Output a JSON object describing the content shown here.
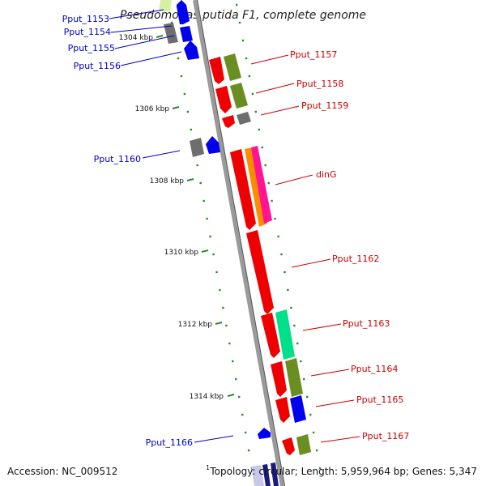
{
  "title": "Pseudomonas putida F1, complete genome",
  "accession": "Accession: NC_009512",
  "topology": "Topology: circular; Length: 5,959,964 bp; Genes: 5,347",
  "superscript": "1",
  "colors": {
    "backbone": "#8c8c8c",
    "tick_dots": "#2e8b2e",
    "left_label": "#0000cc",
    "right_label": "#cc0000",
    "red_gene": "#ee0000",
    "blue_gene": "#0000ee",
    "gray_gene": "#6e6e6e",
    "olive_gene": "#6b8e23",
    "orange_gene": "#ff8c00",
    "magenta_gene": "#ff1493",
    "teal_gene": "#00e08a",
    "lightgreen_gene": "#d4f0a0"
  },
  "kbp_labels": [
    "1304 kbp",
    "1306 kbp",
    "1308 kbp",
    "1310 kbp",
    "1312 kbp",
    "1314 kbp"
  ],
  "left_labels": [
    "Pput_1153",
    "Pput_1154",
    "Pput_1155",
    "Pput_1156",
    "Pput_1160",
    "Pput_1166"
  ],
  "right_labels": [
    "Pput_1157",
    "Pput_1158",
    "Pput_1159",
    "dinG",
    "Pput_1162",
    "Pput_1163",
    "Pput_1164",
    "Pput_1165",
    "Pput_1167"
  ]
}
